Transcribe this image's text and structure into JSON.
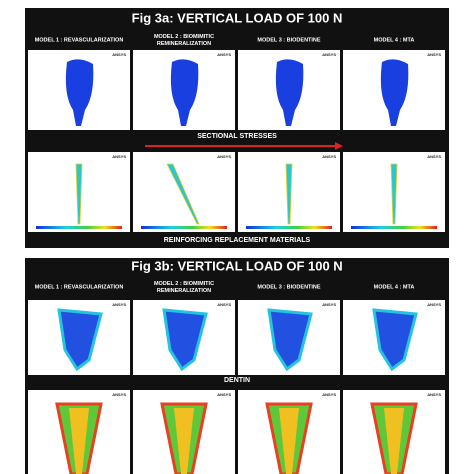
{
  "figure_a": {
    "title": "Fig 3a: VERTICAL LOAD OF 100 N",
    "models": [
      [
        "MODEL 1 : REVASCULARIZATION"
      ],
      [
        "MODEL 2 : BIOMIMITIC",
        "REMINERALIZATION"
      ],
      [
        "MODEL 3 : BIODENTINE"
      ],
      [
        "MODEL 4 : MTA"
      ]
    ],
    "row_label": "SECTIONAL STRESSES",
    "footer": "REINFORCING REPLACEMENT MATERIALS"
  },
  "figure_b": {
    "title": "Fig 3b: VERTICAL LOAD OF 100 N",
    "models": [
      [
        "MODEL 1 : REVASCULARIZATION"
      ],
      [
        "MODEL 2 : BIOMIMITIC",
        "REMINERALIZATION"
      ],
      [
        "MODEL 3 : BIODENTINE"
      ],
      [
        "MODEL 4 : MTA"
      ]
    ],
    "row_label": "DENTIN"
  },
  "tile_logo": "ANSYS"
}
